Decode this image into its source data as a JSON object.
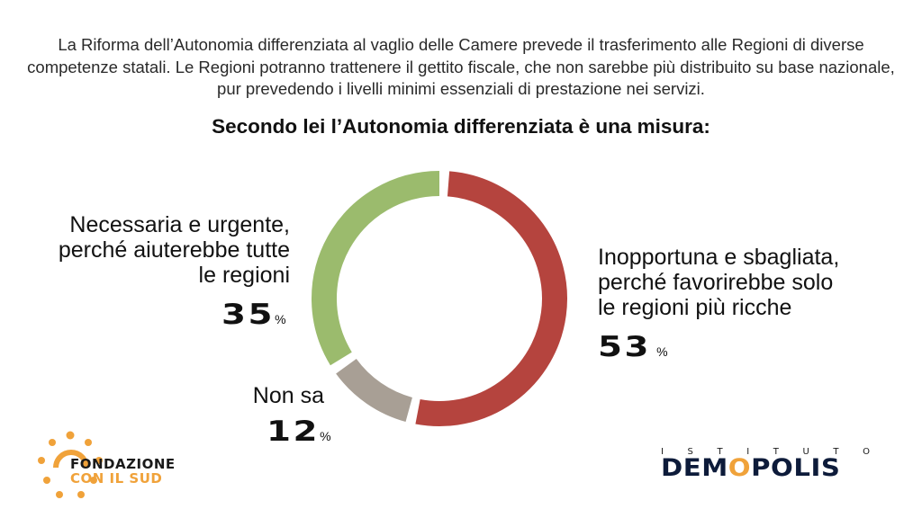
{
  "intro_text": "La Riforma dell’Autonomia differenziata al vaglio delle Camere prevede il trasferimento alle Regioni di diverse competenze statali. Le Regioni potranno trattenere il gettito fiscale, che non sarebbe più distribuito su base nazionale, pur prevedendo i livelli minimi essenziali di prestazione nei servizi.",
  "question": "Secondo lei l’Autonomia differenziata è una misura:",
  "chart_data": {
    "type": "pie",
    "style": "donut",
    "title": "Secondo lei l’Autonomia differenziata è una misura:",
    "unit": "%",
    "segments": [
      {
        "label": "Inopportuna e sbagliata, perché favorirebbe solo le regioni più ricche",
        "value": 53,
        "display": "53",
        "color": "#b5443e"
      },
      {
        "label": "Non sa",
        "value": 12,
        "display": "12",
        "color": "#a89f95"
      },
      {
        "label": "Necessaria e urgente, perché aiuterebbe tutte le regioni",
        "value": 35,
        "display": "35",
        "color": "#9bbb6d"
      }
    ]
  },
  "labels": {
    "right": [
      "Inopportuna e sbagliata,",
      "perché favorirebbe solo",
      "le regioni più ricche"
    ],
    "left": [
      "Necessaria e urgente,",
      "perché aiuterebbe tutte",
      "le regioni"
    ],
    "bottom": [
      "Non sa"
    ],
    "percent_symbol": "%"
  },
  "logos": {
    "fondazione": {
      "line1": "FONDAZIONE",
      "line2": "CON IL SUD",
      "color": "#f0a23a"
    },
    "demopolis": {
      "top_letters": [
        "I",
        "S",
        "T",
        "I",
        "T",
        "U",
        "T",
        "O"
      ],
      "main": "DEMOPOLIS",
      "color": "#0d1b3a",
      "accent": "#f0a23a"
    }
  }
}
